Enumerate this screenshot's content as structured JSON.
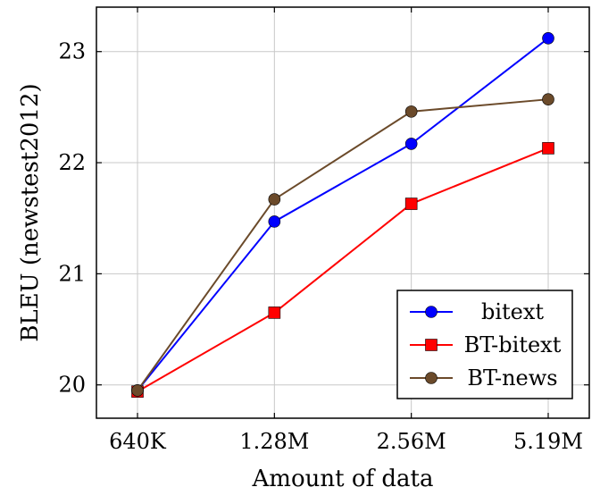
{
  "chart_data": {
    "type": "line",
    "categories": [
      "640K",
      "1.28M",
      "2.56M",
      "5.19M"
    ],
    "xlabel": "Amount of data",
    "ylabel": "BLEU (newstest2012)",
    "ylim": [
      19.7,
      23.4
    ],
    "yticks": [
      20,
      21,
      22,
      23
    ],
    "grid": true,
    "legend_position": "bottom-right",
    "series": [
      {
        "name": "bitext",
        "color": "#0000ff",
        "marker": "circle",
        "values": [
          19.95,
          21.47,
          22.17,
          23.12
        ]
      },
      {
        "name": "BT-bitext",
        "color": "#ff0000",
        "marker": "square",
        "values": [
          19.94,
          20.65,
          21.63,
          22.13
        ]
      },
      {
        "name": "BT-news",
        "color": "#6b4a2a",
        "marker": "circle",
        "values": [
          19.95,
          21.67,
          22.46,
          22.57
        ]
      }
    ]
  }
}
